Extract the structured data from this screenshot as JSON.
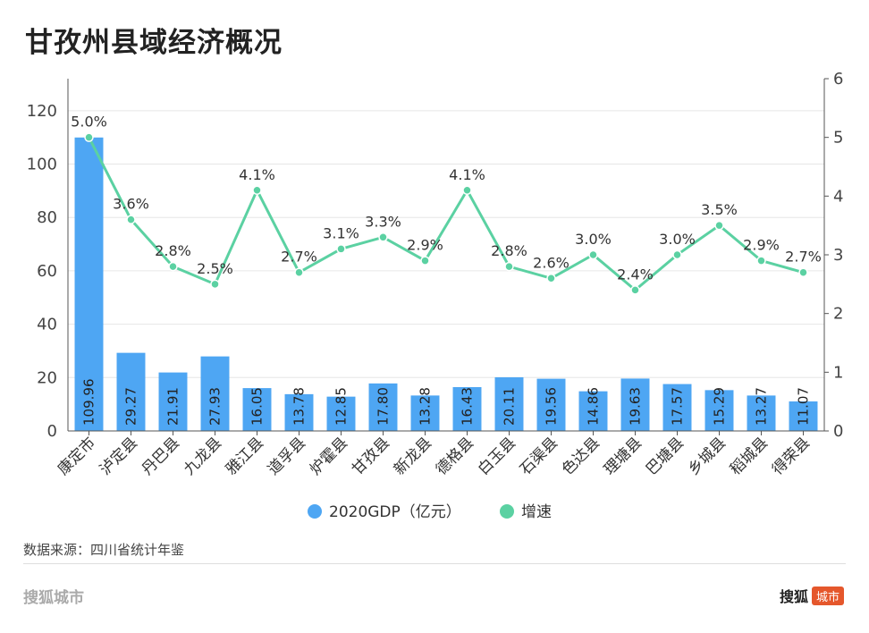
{
  "title": "甘孜州县域经济概况",
  "source": "数据来源：四川省统计年鉴",
  "brand": {
    "left": "搜狐城市",
    "right_text": "搜狐",
    "right_badge": "城市",
    "badge_color": "#e5572c"
  },
  "chart_data": {
    "type": "bar+line",
    "categories": [
      "康定市",
      "泸定县",
      "丹巴县",
      "九龙县",
      "雅江县",
      "道孚县",
      "炉霍县",
      "甘孜县",
      "新龙县",
      "德格县",
      "白玉县",
      "石渠县",
      "色达县",
      "理塘县",
      "巴塘县",
      "乡城县",
      "稻城县",
      "得荣县"
    ],
    "series": [
      {
        "name": "2020GDP（亿元）",
        "type": "bar",
        "axis": "left",
        "color": "#4ea6f3",
        "values": [
          109.96,
          29.27,
          21.91,
          27.93,
          16.05,
          13.78,
          12.85,
          17.8,
          13.28,
          16.43,
          20.11,
          19.56,
          14.86,
          19.63,
          17.57,
          15.29,
          13.27,
          11.07
        ],
        "labels": [
          "109.96",
          "29.27",
          "21.91",
          "27.93",
          "16.05",
          "13.78",
          "12.85",
          "17.80",
          "13.28",
          "16.43",
          "20.11",
          "19.56",
          "14.86",
          "19.63",
          "17.57",
          "15.29",
          "13.27",
          "11.07"
        ]
      },
      {
        "name": "增速",
        "type": "line",
        "axis": "right",
        "color": "#5bd1a2",
        "values": [
          5.0,
          3.6,
          2.8,
          2.5,
          4.1,
          2.7,
          3.1,
          3.3,
          2.9,
          4.1,
          2.8,
          2.6,
          3.0,
          2.4,
          3.0,
          3.5,
          2.9,
          2.7
        ],
        "labels": [
          "5.0%",
          "3.6%",
          "2.8%",
          "2.5%",
          "4.1%",
          "2.7%",
          "3.1%",
          "3.3%",
          "2.9%",
          "4.1%",
          "2.8%",
          "2.6%",
          "3.0%",
          "2.4%",
          "3.0%",
          "3.5%",
          "2.9%",
          "2.7%"
        ]
      }
    ],
    "y_left": {
      "ylim": [
        0,
        132
      ],
      "ticks": [
        "0",
        "20",
        "40",
        "60",
        "80",
        "100",
        "120"
      ],
      "tick_values": [
        0,
        20,
        40,
        60,
        80,
        100,
        120
      ]
    },
    "y_right": {
      "ylim": [
        0,
        6
      ],
      "ticks": [
        "0",
        "1",
        "2",
        "3",
        "4",
        "5",
        "6"
      ],
      "tick_values": [
        0,
        1,
        2,
        3,
        4,
        5,
        6
      ]
    },
    "grid": true,
    "legend_position": "bottom"
  }
}
